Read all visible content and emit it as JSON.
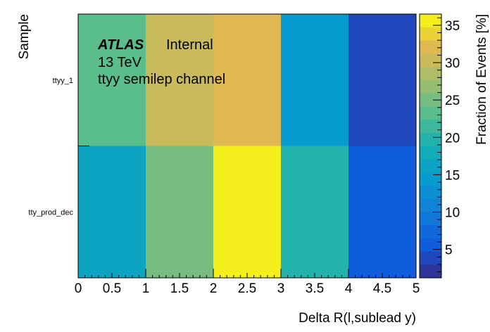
{
  "chart_data": {
    "type": "heatmap",
    "xlabel": "Delta R(l,sublead y)",
    "ylabel": "Sample",
    "colorbar_label": "Fraction of Events [%]",
    "xlim": [
      0,
      5
    ],
    "x_ticks": [
      "0",
      "0.5",
      "1",
      "1.5",
      "2",
      "2.5",
      "3",
      "3.5",
      "4",
      "4.5",
      "5"
    ],
    "x_bin_edges": [
      0,
      1,
      2,
      3,
      4,
      5
    ],
    "rows": [
      "ttyy_1",
      "tty_prod_dec"
    ],
    "values": [
      [
        23.5,
        29.5,
        31.5,
        15.0,
        3.5
      ],
      [
        17.0,
        24.5,
        36.0,
        20.5,
        5.0
      ]
    ],
    "zlim": [
      1.2,
      36.5
    ],
    "colorbar_ticks": [
      "5",
      "10",
      "15",
      "20",
      "25",
      "30",
      "35"
    ],
    "colorbar_tick_values": [
      5,
      10,
      15,
      20,
      25,
      30,
      35
    ],
    "annotations": {
      "experiment": "ATLAS",
      "status": "Internal",
      "energy": "13 TeV",
      "channel": "ttyy semilep channel"
    }
  }
}
